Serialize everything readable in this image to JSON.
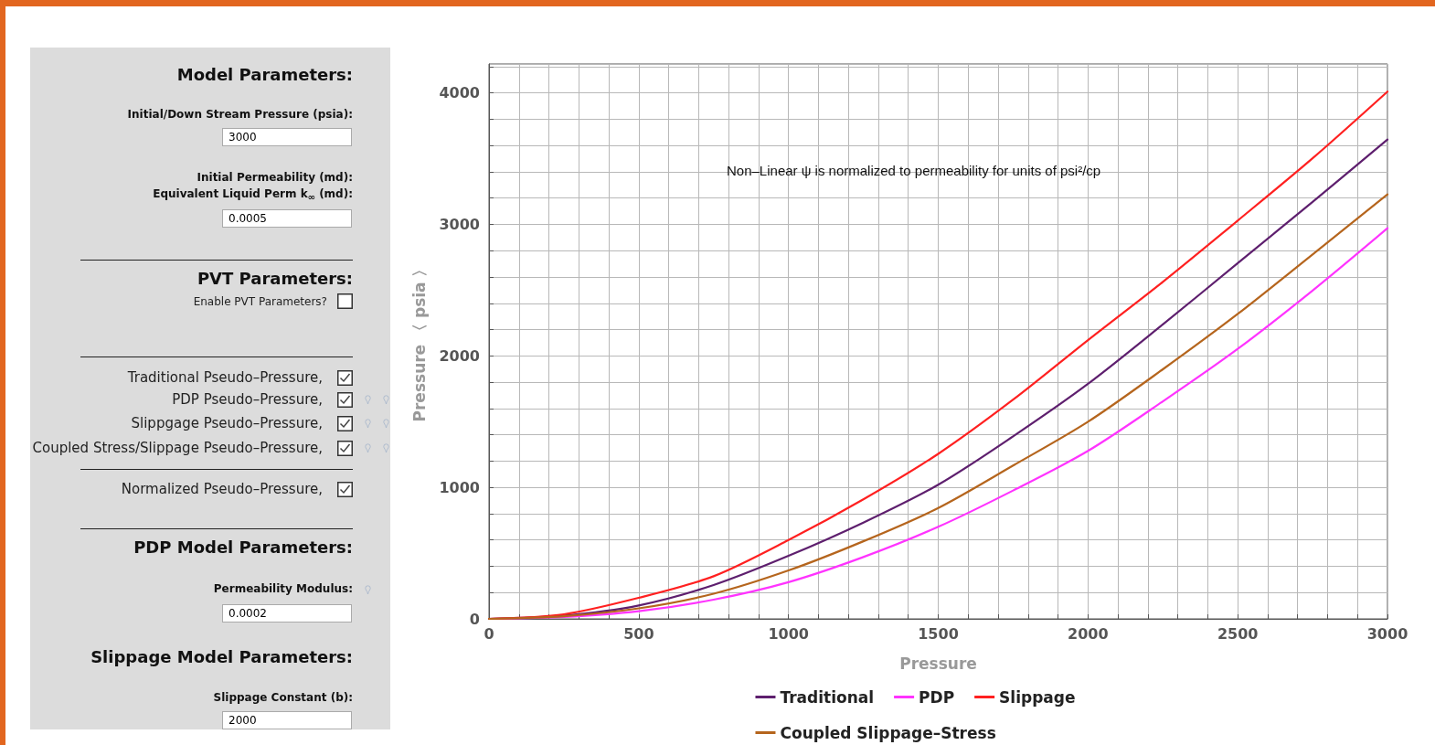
{
  "chart_data": {
    "type": "line",
    "xlabel": "Pressure",
    "ylabel": "Pressure 〈 psia 〉",
    "x": [
      0,
      250,
      500,
      750,
      1000,
      1250,
      1500,
      1750,
      2000,
      2250,
      2500,
      2750,
      3000
    ],
    "series": [
      {
        "name": "Traditional",
        "color": "#5e1f6e",
        "values": [
          0,
          25,
          102,
          257,
          479,
          732,
          1020,
          1388,
          1787,
          2239,
          2705,
          3171,
          3645
        ]
      },
      {
        "name": "PDP",
        "color": "#ff33ff",
        "values": [
          0,
          14,
          58,
          146,
          279,
          470,
          700,
          976,
          1277,
          1654,
          2053,
          2497,
          2971
        ]
      },
      {
        "name": "Slippage",
        "color": "#ff2020",
        "values": [
          0,
          35,
          160,
          324,
          599,
          909,
          1255,
          1667,
          2120,
          2563,
          3029,
          3503,
          4010
        ]
      },
      {
        "name": "Coupled Slippage–Stress",
        "color": "#b5651d",
        "values": [
          0,
          20,
          80,
          191,
          368,
          590,
          843,
          1166,
          1499,
          1898,
          2319,
          2772,
          3228
        ]
      }
    ],
    "xlim": [
      0,
      3000
    ],
    "xticks": [
      0,
      {
        "value": 100,
        "label": null
      },
      {
        "value": 200,
        "label": null
      },
      {
        "value": 300,
        "label": null
      },
      {
        "value": 400,
        "label": null
      },
      500,
      {
        "value": 600,
        "label": null
      },
      {
        "value": 700,
        "label": null
      },
      {
        "value": 800,
        "label": null
      },
      {
        "value": 900,
        "label": null
      },
      1000,
      {
        "value": 1100,
        "label": null
      },
      {
        "value": 1200,
        "label": null
      },
      {
        "value": 1300,
        "label": null
      },
      {
        "value": 1400,
        "label": null
      },
      1500,
      {
        "value": 1600,
        "label": null
      },
      {
        "value": 1700,
        "label": null
      },
      {
        "value": 1800,
        "label": null
      },
      {
        "value": 1900,
        "label": null
      },
      2000,
      {
        "value": 2100,
        "label": null
      },
      {
        "value": 2200,
        "label": null
      },
      {
        "value": 2300,
        "label": null
      },
      {
        "value": 2400,
        "label": null
      },
      2500,
      {
        "value": 2600,
        "label": null
      },
      {
        "value": 2700,
        "label": null
      },
      {
        "value": 2800,
        "label": null
      },
      {
        "value": 2900,
        "label": null
      },
      3000
    ],
    "ylim": [
      0,
      4220
    ],
    "yticks": [
      0,
      {
        "value": 200,
        "label": null
      },
      {
        "value": 400,
        "label": null
      },
      {
        "value": 600,
        "label": null
      },
      {
        "value": 800,
        "label": null
      },
      1000,
      {
        "value": 1200,
        "label": null
      },
      {
        "value": 1400,
        "label": null
      },
      {
        "value": 1600,
        "label": null
      },
      {
        "value": 1800,
        "label": null
      },
      2000,
      {
        "value": 2200,
        "label": null
      },
      {
        "value": 2400,
        "label": null
      },
      {
        "value": 2600,
        "label": null
      },
      {
        "value": 2800,
        "label": null
      },
      3000,
      {
        "value": 3200,
        "label": null
      },
      {
        "value": 3400,
        "label": null
      },
      {
        "value": 3600,
        "label": null
      },
      {
        "value": 3800,
        "label": null
      },
      4000,
      {
        "value": 4200,
        "label": null
      }
    ],
    "grid": true,
    "legend": "bottom",
    "marker": "none",
    "line_style": "solid",
    "annotations": [
      "Non–Linear ψ is normalized to permeability for units of psi²/cp",
      "Model Parameters:",
      "Initial/Down Stream Pressure (psia):",
      "3000",
      "Initial Permeability (md):",
      "Equivalent Liquid Perm k$_{∞}$ (md):",
      "0.0005",
      "PVT Parameters:",
      "Enable PVT Parameters?",
      "Traditional Pseudo–Pressure,",
      "PDP Pseudo–Pressure,",
      "Slippgage Pseudo–Pressure,",
      "Coupled Stress/Slippage Pseudo–Pressure,",
      "Normalized Pseudo–Pressure,",
      "PDP Model Parameters:",
      "Permeability Modulus:",
      "0.0002",
      "Slippage Model Parameters:",
      "Slippage Constant (b):",
      "2000"
    ]
  }
}
